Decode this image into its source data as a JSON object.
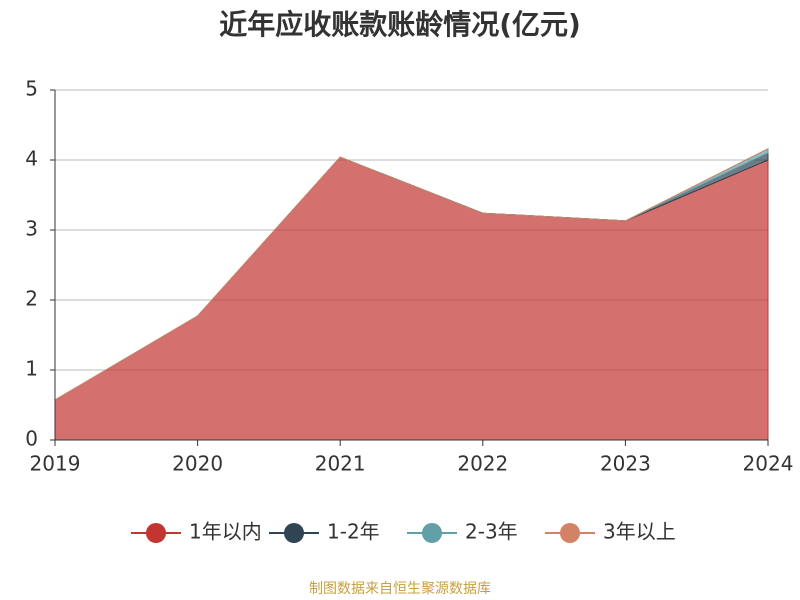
{
  "chart_data": {
    "type": "stacked-area",
    "title": "近年应收账款账龄情况(亿元)",
    "categories": [
      "2019",
      "2020",
      "2021",
      "2022",
      "2023",
      "2024"
    ],
    "series": [
      {
        "name": "1年以内",
        "color": "#c23531",
        "values": [
          0.57,
          1.77,
          4.04,
          3.24,
          3.13,
          4.0
        ]
      },
      {
        "name": "1-2年",
        "color": "#2f4554",
        "values": [
          0,
          0,
          0,
          0,
          0,
          0.1
        ]
      },
      {
        "name": "2-3年",
        "color": "#61a0a8",
        "values": [
          0,
          0,
          0,
          0,
          0,
          0.06
        ]
      },
      {
        "name": "3年以上",
        "color": "#d48265",
        "values": [
          0,
          0,
          0,
          0,
          0,
          0
        ]
      }
    ],
    "ylim": [
      0,
      5
    ],
    "yticks": [
      0,
      1,
      2,
      3,
      4,
      5
    ],
    "grid": true,
    "legend": "bottom",
    "source": "制图数据来自恒生聚源数据库"
  }
}
